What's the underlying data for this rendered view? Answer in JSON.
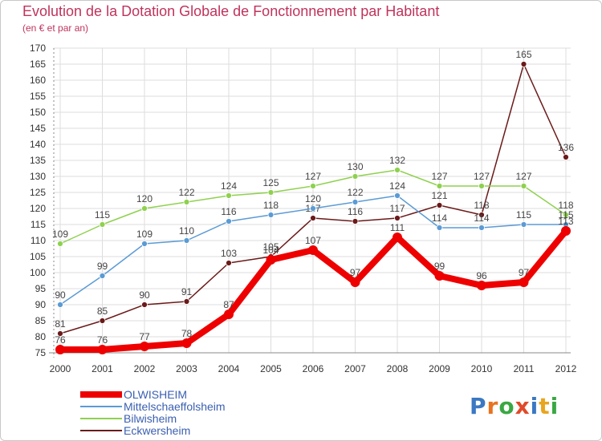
{
  "title": "Evolution de la Dotation Globale de Fonctionnement par Habitant",
  "subtitle": "(en € et par an)",
  "logo": {
    "letters": [
      "P",
      "r",
      "o",
      "x",
      "i",
      "t",
      "i"
    ],
    "colors": [
      "#3a78c2",
      "#e8731f",
      "#3aa843",
      "#e04a2a",
      "#3a78c2",
      "#e8a51f",
      "#3aa843"
    ]
  },
  "chart_data": {
    "type": "line",
    "x": [
      "2000",
      "2001",
      "2002",
      "2003",
      "2004",
      "2005",
      "2006",
      "2007",
      "2008",
      "2009",
      "2010",
      "2011",
      "2012"
    ],
    "ylim": [
      75,
      170
    ],
    "yticks": [
      75,
      80,
      85,
      90,
      95,
      100,
      105,
      110,
      115,
      120,
      125,
      130,
      135,
      140,
      145,
      150,
      155,
      160,
      165,
      170
    ],
    "grid": true,
    "legend_position": "bottom-left",
    "series": [
      {
        "name": "OLWISHEIM",
        "color": "#ee0000",
        "values": [
          76,
          76,
          77,
          78,
          87,
          104,
          107,
          97,
          111,
          99,
          96,
          97,
          113
        ]
      },
      {
        "name": "Mittelschaeffolsheim",
        "color": "#5b9bd5",
        "values": [
          90,
          99,
          109,
          110,
          116,
          118,
          120,
          122,
          124,
          114,
          114,
          115,
          115
        ]
      },
      {
        "name": "Bilwisheim",
        "color": "#8fd14f",
        "values": [
          109,
          115,
          120,
          122,
          124,
          125,
          127,
          130,
          132,
          127,
          127,
          127,
          118
        ]
      },
      {
        "name": "Eckwersheim",
        "color": "#6b1a1a",
        "values": [
          81,
          85,
          90,
          91,
          103,
          105,
          117,
          116,
          117,
          121,
          118,
          165,
          136
        ]
      }
    ]
  }
}
